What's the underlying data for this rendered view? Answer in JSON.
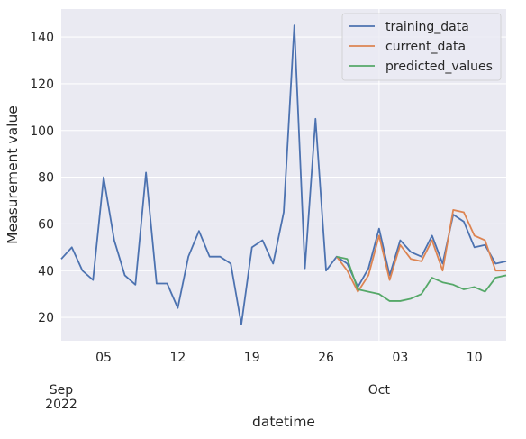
{
  "chart_data": {
    "type": "line",
    "xlabel": "datetime",
    "ylabel": "Measurement value",
    "xlim": [
      "2022-09-01",
      "2022-10-13"
    ],
    "ylim": [
      10,
      152
    ],
    "grid": true,
    "legend_position": "top-right",
    "yticks": [
      20,
      40,
      60,
      80,
      100,
      120,
      140
    ],
    "xticks": [
      {
        "date": "2022-09-05",
        "label": "05",
        "sub": ""
      },
      {
        "date": "2022-09-12",
        "label": "12",
        "sub": ""
      },
      {
        "date": "2022-09-19",
        "label": "19",
        "sub": ""
      },
      {
        "date": "2022-09-26",
        "label": "26",
        "sub": ""
      },
      {
        "date": "2022-10-03",
        "label": "03",
        "sub": ""
      },
      {
        "date": "2022-10-10",
        "label": "10",
        "sub": ""
      }
    ],
    "month_labels": [
      {
        "date": "2022-09-01",
        "label": "Sep",
        "year": "2022"
      },
      {
        "date": "2022-10-01",
        "label": "Oct",
        "year": ""
      }
    ],
    "series": [
      {
        "name": "training_data",
        "color": "#4c72b0",
        "x": [
          "2022-09-01",
          "2022-09-02",
          "2022-09-03",
          "2022-09-04",
          "2022-09-05",
          "2022-09-06",
          "2022-09-07",
          "2022-09-08",
          "2022-09-09",
          "2022-09-10",
          "2022-09-11",
          "2022-09-12",
          "2022-09-13",
          "2022-09-14",
          "2022-09-15",
          "2022-09-16",
          "2022-09-17",
          "2022-09-18",
          "2022-09-19",
          "2022-09-20",
          "2022-09-21",
          "2022-09-22",
          "2022-09-23",
          "2022-09-24",
          "2022-09-25",
          "2022-09-26",
          "2022-09-27",
          "2022-09-28",
          "2022-09-29",
          "2022-09-30",
          "2022-10-01",
          "2022-10-02",
          "2022-10-03",
          "2022-10-04",
          "2022-10-05",
          "2022-10-06",
          "2022-10-07",
          "2022-10-08",
          "2022-10-09",
          "2022-10-10",
          "2022-10-11",
          "2022-10-12",
          "2022-10-13"
        ],
        "y": [
          45,
          50,
          40,
          36,
          80,
          53,
          38,
          34,
          82,
          34.5,
          34.5,
          24,
          46,
          57,
          46,
          46,
          43,
          17,
          50,
          53,
          43,
          65,
          145,
          41,
          105,
          40,
          46,
          43,
          33,
          41,
          58,
          38,
          53,
          48,
          46,
          55,
          43,
          64,
          61,
          50,
          51,
          43,
          44
        ]
      },
      {
        "name": "current_data",
        "color": "#dd8452",
        "x": [
          "2022-09-27",
          "2022-09-28",
          "2022-09-29",
          "2022-09-30",
          "2022-10-01",
          "2022-10-02",
          "2022-10-03",
          "2022-10-04",
          "2022-10-05",
          "2022-10-06",
          "2022-10-07",
          "2022-10-08",
          "2022-10-09",
          "2022-10-10",
          "2022-10-11",
          "2022-10-12",
          "2022-10-13"
        ],
        "y": [
          46,
          40,
          31,
          38,
          55,
          36,
          51,
          45,
          44,
          53,
          40,
          66,
          65,
          55,
          53,
          40,
          40
        ]
      },
      {
        "name": "predicted_values",
        "color": "#55a868",
        "x": [
          "2022-09-27",
          "2022-09-28",
          "2022-09-29",
          "2022-09-30",
          "2022-10-01",
          "2022-10-02",
          "2022-10-03",
          "2022-10-04",
          "2022-10-05",
          "2022-10-06",
          "2022-10-07",
          "2022-10-08",
          "2022-10-09",
          "2022-10-10",
          "2022-10-11",
          "2022-10-12",
          "2022-10-13"
        ],
        "y": [
          46,
          45,
          32,
          31,
          30,
          27,
          27,
          28,
          30,
          37,
          35,
          34,
          32,
          33,
          31,
          37,
          38
        ]
      }
    ]
  }
}
